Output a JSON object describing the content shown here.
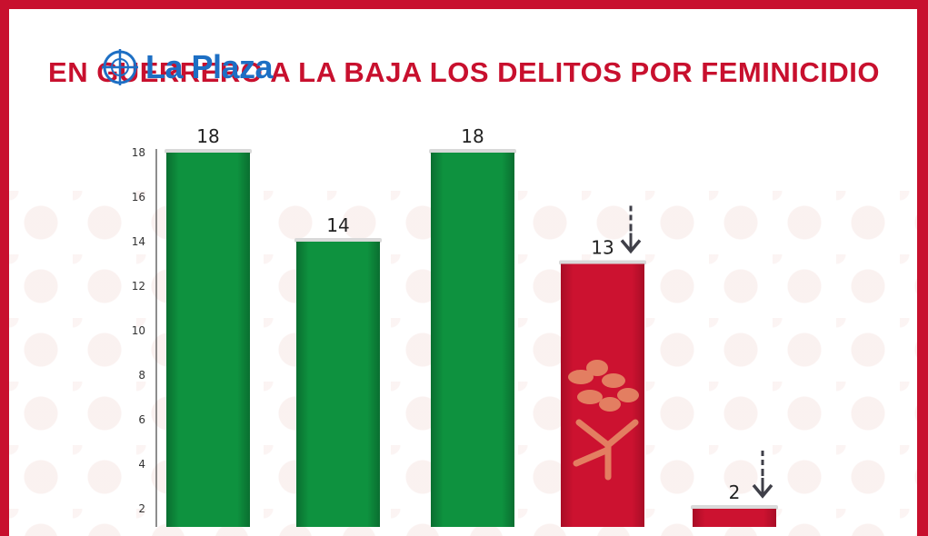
{
  "header": {
    "logo_text": "La Plaza",
    "title": "EN GUERRERO A LA BAJA LOS DELITOS POR FEMINICIDIO"
  },
  "colors": {
    "frame": "#c8102e",
    "green": "#0c8a3c",
    "red": "#c8102e",
    "logo": "#1d6fc4",
    "arrow": "#3f3f48"
  },
  "icons": {
    "logo": "crosshair-globe-icon",
    "decrease": "dashed-down-arrow-icon",
    "emblem": "tree-emblem-icon"
  },
  "chart_data": {
    "type": "bar",
    "title": "EN GUERRERO A LA BAJA LOS DELITOS POR FEMINICIDIO",
    "values": [
      18,
      14,
      18,
      13,
      2
    ],
    "value_labels": [
      "18",
      "14",
      "18",
      "13",
      "2"
    ],
    "bar_colors": [
      "#0c8a3c",
      "#0c8a3c",
      "#0c8a3c",
      "#c8102e",
      "#c8102e"
    ],
    "decrease_arrow": [
      false,
      false,
      false,
      true,
      true
    ],
    "yticks": [
      2,
      4,
      6,
      8,
      10,
      12,
      14,
      16,
      18
    ],
    "ylim": [
      0,
      18
    ],
    "grid": false,
    "legend": "none",
    "xlabel": "",
    "ylabel": ""
  }
}
